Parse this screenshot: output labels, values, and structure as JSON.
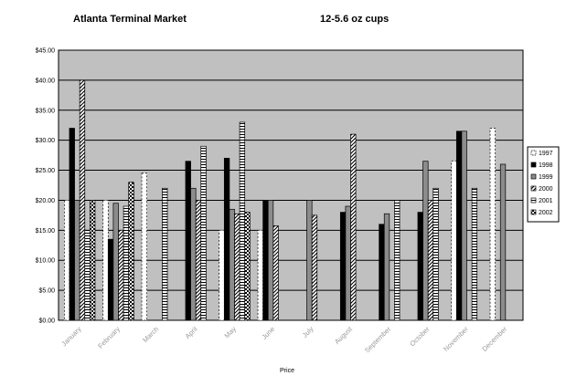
{
  "chart_data": {
    "type": "bar",
    "title": "Atlanta Terminal Market",
    "subtitle": "12-5.6 oz cups",
    "xlabel": "Price",
    "ylabel": "",
    "ylim": [
      0,
      45
    ],
    "y_ticks": [
      "$0.00",
      "$5.00",
      "$10.00",
      "$15.00",
      "$20.00",
      "$25.00",
      "$30.00",
      "$35.00",
      "$40.00",
      "$45.00"
    ],
    "grid": true,
    "legend_position": "right",
    "categories": [
      "January",
      "February",
      "March",
      "April",
      "May",
      "June",
      "July",
      "August",
      "September",
      "October",
      "November",
      "December"
    ],
    "series": [
      {
        "name": "1997",
        "values": [
          20,
          20,
          24.5,
          null,
          15,
          15,
          null,
          null,
          null,
          null,
          26.5,
          32
        ]
      },
      {
        "name": "1998",
        "values": [
          32,
          13.5,
          null,
          26.5,
          27,
          20,
          null,
          18,
          16,
          18,
          31.5,
          null
        ]
      },
      {
        "name": "1999",
        "values": [
          20,
          19.5,
          null,
          22,
          18.5,
          20,
          20,
          19,
          17.75,
          26.5,
          31.5,
          26
        ]
      },
      {
        "name": "2000",
        "values": [
          40,
          15,
          null,
          20,
          17.75,
          15.75,
          17.5,
          31,
          null,
          20,
          null,
          null
        ]
      },
      {
        "name": "2001",
        "values": [
          15,
          19,
          22,
          29,
          33,
          null,
          null,
          null,
          20,
          22,
          22,
          null
        ]
      },
      {
        "name": "2002",
        "values": [
          20,
          23,
          null,
          null,
          18,
          null,
          null,
          null,
          null,
          null,
          null,
          null
        ]
      }
    ],
    "colors": {
      "plot_background": "#c0c0c0",
      "gridline": "#000000",
      "category_label": "#9a9a9a"
    }
  }
}
